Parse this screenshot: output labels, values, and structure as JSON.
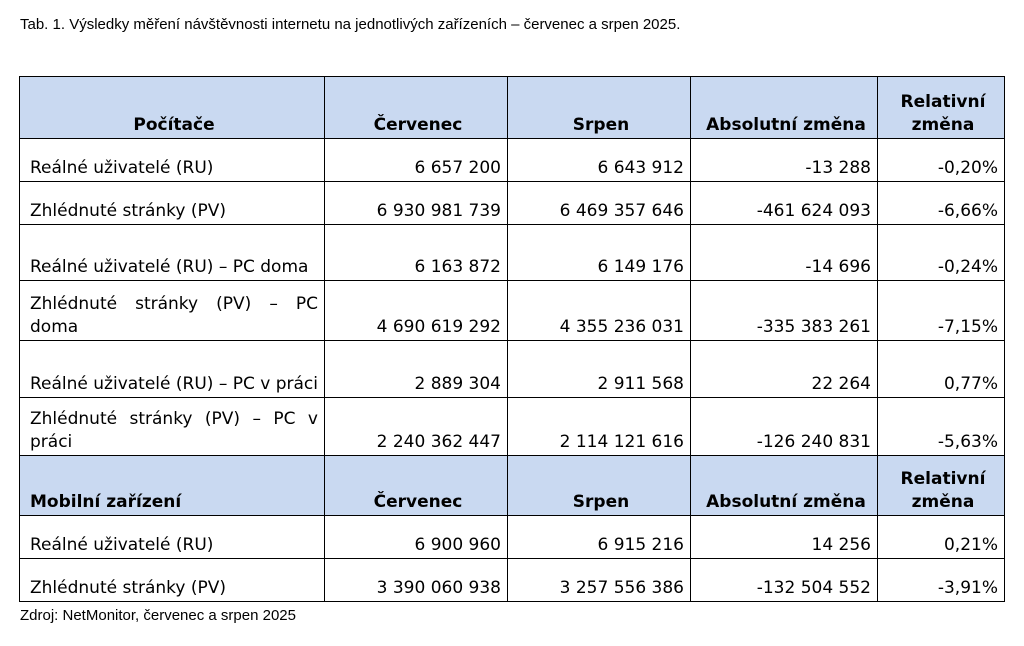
{
  "caption": "Tab. 1. Výsledky měření návštěvnosti internetu na jednotlivých zařízeních – červenec a srpen 2025.",
  "source": "Zdroj: NetMonitor, červenec a srpen 2025",
  "table": {
    "header_computers": {
      "category": "Počítače",
      "col_july": "Červenec",
      "col_august": "Srpen",
      "col_abs": "Absolutní změna",
      "col_rel": "Relativní změna"
    },
    "computers_rows": [
      {
        "label": "Reálné uživatelé (RU)",
        "july": "6 657 200",
        "august": "6 643 912",
        "abs": "-13 288",
        "rel": "-0,20%"
      },
      {
        "label": "Zhlédnuté stránky (PV)",
        "july": "6 930 981 739",
        "august": "6 469 357 646",
        "abs": "-461 624 093",
        "rel": "-6,66%"
      },
      {
        "label": "Reálné uživatelé (RU) – PC doma",
        "july": "6 163 872",
        "august": "6 149 176",
        "abs": "-14 696",
        "rel": "-0,24%"
      },
      {
        "label": "Zhlédnuté stránky (PV) – PC doma",
        "july": "4 690 619 292",
        "august": "4 355 236 031",
        "abs": "-335 383 261",
        "rel": "-7,15%"
      },
      {
        "label": "Reálné uživatelé (RU) – PC v práci",
        "july": "2 889 304",
        "august": "2 911 568",
        "abs": "22 264",
        "rel": "0,77%"
      },
      {
        "label": "Zhlédnuté stránky (PV) – PC v práci",
        "july": "2 240 362 447",
        "august": "2 114 121 616",
        "abs": "-126 240 831",
        "rel": "-5,63%"
      }
    ],
    "header_mobile": {
      "category": "Mobilní zařízení",
      "col_july": "Červenec",
      "col_august": "Srpen",
      "col_abs": "Absolutní změna",
      "col_rel": "Relativní změna"
    },
    "mobile_rows": [
      {
        "label": "Reálné uživatelé (RU)",
        "july": "6 900 960",
        "august": "6 915 216",
        "abs": "14 256",
        "rel": "0,21%"
      },
      {
        "label": "Zhlédnuté stránky (PV)",
        "july": "3 390 060 938",
        "august": "3 257 556 386",
        "abs": "-132 504 552",
        "rel": "-3,91%"
      }
    ],
    "colors": {
      "header_background": "#c9d9f1",
      "border": "#000000"
    }
  }
}
